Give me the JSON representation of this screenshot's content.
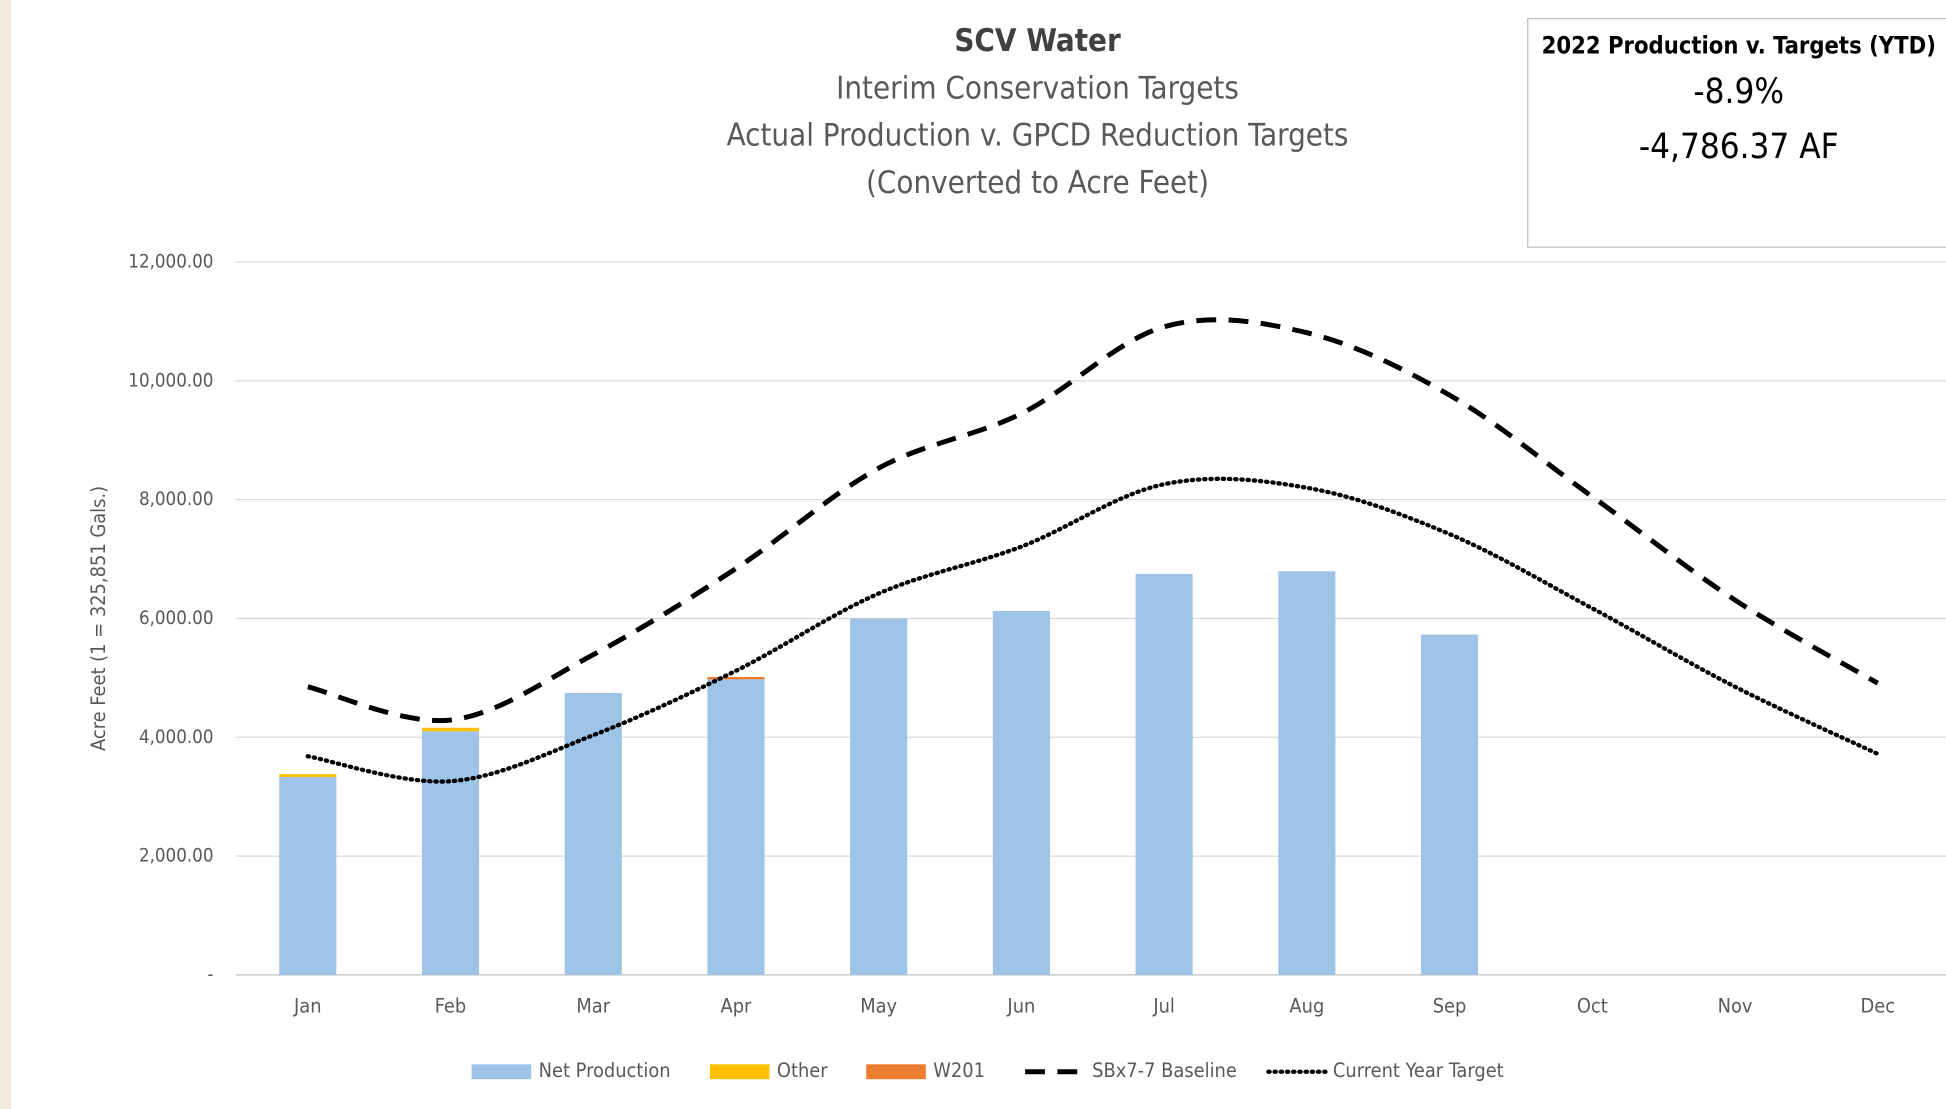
{
  "chart_data": {
    "type": "bar",
    "title": "SCV Water",
    "subtitle": [
      "Interim Conservation Targets",
      "Actual Production v. GPCD Reduction Targets",
      "(Converted to Acre Feet)"
    ],
    "y_label": "Acre Feet (1 = 325,851 Gals.)",
    "annotation": {
      "title": "2022 Production v. Targets (YTD)",
      "lines": [
        "-8.9%",
        "-4,786.37 AF"
      ]
    },
    "categories": [
      "Jan",
      "Feb",
      "Mar",
      "Apr",
      "May",
      "Jun",
      "Jul",
      "Aug",
      "Sep",
      "Oct",
      "Nov",
      "Dec"
    ],
    "series": [
      {
        "name": "Net Production",
        "color": "#9dc3e6",
        "kind": "bar",
        "values": [
          3330,
          4100,
          4745,
          4975,
          6000,
          6125,
          6750,
          6795,
          5730,
          null,
          null,
          null
        ]
      },
      {
        "name": "Other",
        "color": "#ffc000",
        "kind": "bar",
        "values": [
          50,
          60,
          0,
          0,
          0,
          0,
          0,
          0,
          0,
          null,
          null,
          null
        ]
      },
      {
        "name": "W201",
        "color": "#ed7d31",
        "kind": "bar",
        "values": [
          0,
          0,
          0,
          40,
          0,
          0,
          0,
          0,
          0,
          null,
          null,
          null
        ]
      },
      {
        "name": "SBx7-7 Baseline",
        "color": "#000000",
        "kind": "dashed",
        "values": [
          4850,
          4290,
          5390,
          6840,
          8530,
          9450,
          10910,
          10810,
          9760,
          8050,
          6310,
          4910
        ]
      },
      {
        "name": "Current Year Target",
        "color": "#000000",
        "kind": "dotted",
        "values": [
          3680,
          3260,
          4035,
          5120,
          6420,
          7210,
          8260,
          8200,
          7420,
          6170,
          4850,
          3720
        ]
      }
    ],
    "ylim": [
      0,
      12000
    ],
    "yticks": [
      {
        "value": 0,
        "label": "-"
      },
      {
        "value": 2000,
        "label": "2,000.00"
      },
      {
        "value": 4000,
        "label": "4,000.00"
      },
      {
        "value": 6000,
        "label": "6,000.00"
      },
      {
        "value": 8000,
        "label": "8,000.00"
      },
      {
        "value": 10000,
        "label": "10,000.00"
      },
      {
        "value": 12000,
        "label": "12,000.00"
      }
    ],
    "grid": true,
    "legend": "bottom"
  }
}
